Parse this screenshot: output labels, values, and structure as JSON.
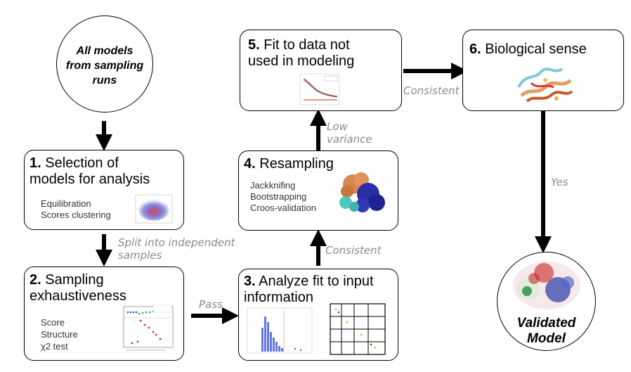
{
  "start": {
    "lines": [
      "All models",
      "from sampling",
      "runs"
    ]
  },
  "step1": {
    "num": "1.",
    "title_rest_1": " Selection of",
    "title_2": "models for analysis",
    "items": [
      "Equilibration",
      "Scores clustering"
    ]
  },
  "step2": {
    "num": "2.",
    "title_rest_1": " Sampling",
    "title_2": "exhaustiveness",
    "items": [
      "Score",
      "Structure",
      "χ2 test"
    ]
  },
  "step3": {
    "num": "3.",
    "title_rest_1": " Analyze fit to input",
    "title_2": "information"
  },
  "step4": {
    "num": "4.",
    "title_rest_1": " Resampling",
    "items": [
      "Jackknifing",
      "Bootstrapping",
      "Croos-validation"
    ]
  },
  "step5": {
    "num": "5.",
    "title_rest_1": " Fit to data not",
    "title_2": "used in modeling"
  },
  "step6": {
    "num": "6.",
    "title_rest_1": " Biological sense"
  },
  "end": {
    "lines": [
      "Validated",
      "Model"
    ]
  },
  "edges": {
    "split": [
      "Split into independent",
      "samples"
    ],
    "pass": "Pass",
    "consistent_3_4": "Consistent",
    "low_variance": [
      "Low",
      "variance"
    ],
    "consistent_5_6": "Consistent",
    "yes": "Yes"
  },
  "colors": {
    "edge_label": "#8a8a8a",
    "arrow": "#000000"
  }
}
